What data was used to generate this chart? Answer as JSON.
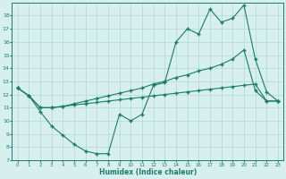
{
  "xlabel": "Humidex (Indice chaleur)",
  "line_color": "#1a7a6e",
  "bg_color": "#d7f0ee",
  "grid_color": "#b0d8d4",
  "xlim": [
    -0.5,
    23.5
  ],
  "ylim": [
    7,
    19
  ],
  "xticks": [
    0,
    1,
    2,
    3,
    4,
    5,
    6,
    7,
    8,
    9,
    10,
    11,
    12,
    13,
    14,
    15,
    16,
    17,
    18,
    19,
    20,
    21,
    22,
    23
  ],
  "yticks": [
    7,
    8,
    9,
    10,
    11,
    12,
    13,
    14,
    15,
    16,
    17,
    18
  ],
  "line1_x": [
    0,
    1,
    2,
    3,
    4,
    5,
    6,
    7,
    8,
    9,
    10,
    11,
    12,
    13,
    14,
    15,
    16,
    17,
    18,
    19,
    20,
    21,
    22,
    23
  ],
  "line1_y": [
    12.5,
    11.9,
    10.7,
    9.6,
    8.9,
    8.2,
    7.7,
    7.5,
    7.5,
    10.5,
    10.0,
    10.5,
    12.7,
    12.9,
    16.0,
    17.0,
    16.6,
    18.5,
    17.5,
    17.8,
    18.8,
    14.7,
    12.2,
    11.5
  ],
  "line2_x": [
    0,
    1,
    2,
    3,
    4,
    5,
    6,
    7,
    8,
    9,
    10,
    11,
    12,
    13,
    14,
    15,
    16,
    17,
    18,
    19,
    20,
    21,
    22,
    23
  ],
  "line2_y": [
    12.5,
    11.9,
    11.0,
    11.0,
    11.1,
    11.3,
    11.5,
    11.7,
    11.9,
    12.1,
    12.3,
    12.5,
    12.8,
    13.0,
    13.3,
    13.5,
    13.8,
    14.0,
    14.3,
    14.7,
    15.4,
    12.3,
    11.5,
    11.5
  ],
  "line3_x": [
    0,
    1,
    2,
    3,
    4,
    5,
    6,
    7,
    8,
    9,
    10,
    11,
    12,
    13,
    14,
    15,
    16,
    17,
    18,
    19,
    20,
    21,
    22,
    23
  ],
  "line3_y": [
    12.5,
    11.9,
    11.0,
    11.0,
    11.1,
    11.2,
    11.3,
    11.4,
    11.5,
    11.6,
    11.7,
    11.8,
    11.9,
    12.0,
    12.1,
    12.2,
    12.3,
    12.4,
    12.5,
    12.6,
    12.7,
    12.8,
    11.5,
    11.5
  ]
}
